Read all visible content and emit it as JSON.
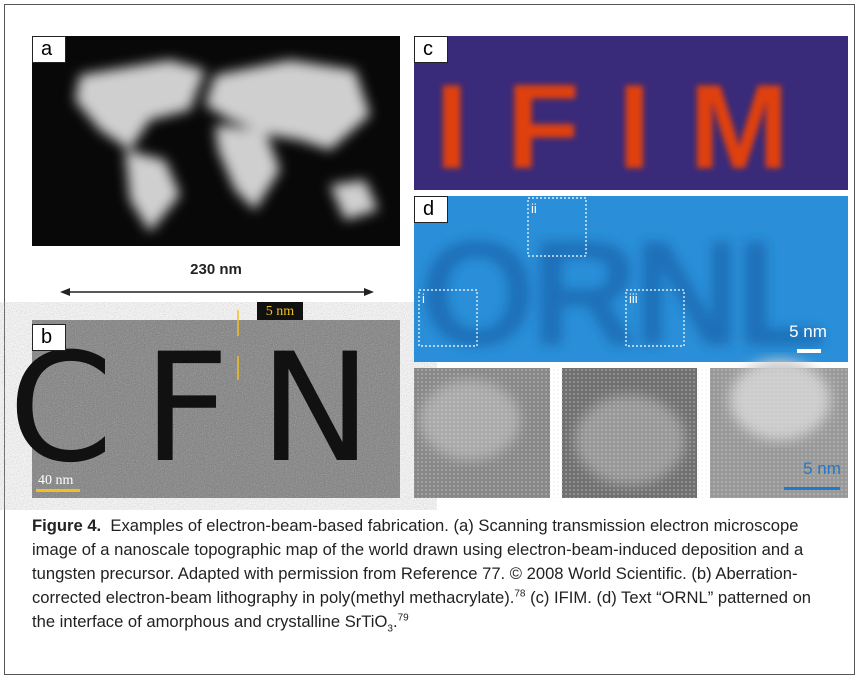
{
  "figure": {
    "panels": [
      {
        "label": "a",
        "scale_label": "230 nm"
      },
      {
        "label": "b",
        "image_text": "CFN",
        "marker_label": "5 nm",
        "scale_label": "40 nm"
      },
      {
        "label": "c",
        "image_text": "IFIM"
      },
      {
        "label": "d",
        "image_text": "ORNL",
        "scale_label": "5 nm",
        "insets": [
          "i",
          "ii",
          "iii"
        ]
      }
    ],
    "inset_scale_label": "5 nm"
  },
  "caption": {
    "label": "Figure 4.",
    "text1": "Examples of electron-beam-based fabrication. (a) Scanning transmission electron microscope image of a nanoscale topographic map of the world drawn using electron-beam-induced deposition and a tungsten precursor. Adapted with permission from Reference 77. © 2008 World Scientific. (b) Aberration-corrected electron-beam lithography in poly(methyl methacrylate).",
    "sup1": "78",
    "text2": " (c) IFIM. (d) Text “ORNL” patterned on the interface of amorphous and crystalline SrTiO",
    "sub1": "3",
    "text3": ".",
    "sup2": "79"
  }
}
